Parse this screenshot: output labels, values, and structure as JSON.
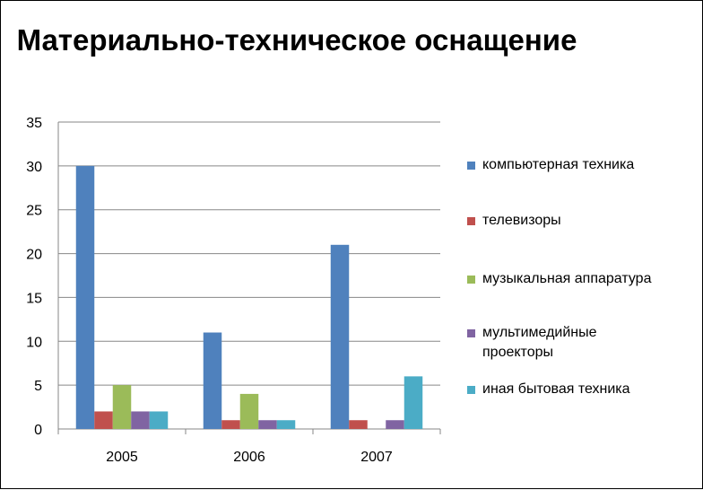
{
  "chart_data": {
    "type": "bar",
    "title": "Материально-техническое оснащение",
    "xlabel": "",
    "ylabel": "",
    "categories": [
      "2005",
      "2006",
      "2007"
    ],
    "ylim": [
      0,
      35
    ],
    "yticks": [
      0,
      5,
      10,
      15,
      20,
      25,
      30,
      35
    ],
    "grid": true,
    "legend_position": "right",
    "series": [
      {
        "name": "компьютерная техника",
        "color": "#4F81BD",
        "values": [
          30,
          11,
          21
        ]
      },
      {
        "name": "телевизоры",
        "color": "#C0504D",
        "values": [
          2,
          1,
          1
        ]
      },
      {
        "name": "музыкальная аппаратура",
        "color": "#9BBB59",
        "values": [
          5,
          4,
          0
        ]
      },
      {
        "name": "мультимедийные проекторы",
        "color": "#8064A2",
        "values": [
          2,
          1,
          1
        ]
      },
      {
        "name": "иная бытовая техника",
        "color": "#4BACC6",
        "values": [
          2,
          1,
          6
        ]
      }
    ]
  }
}
